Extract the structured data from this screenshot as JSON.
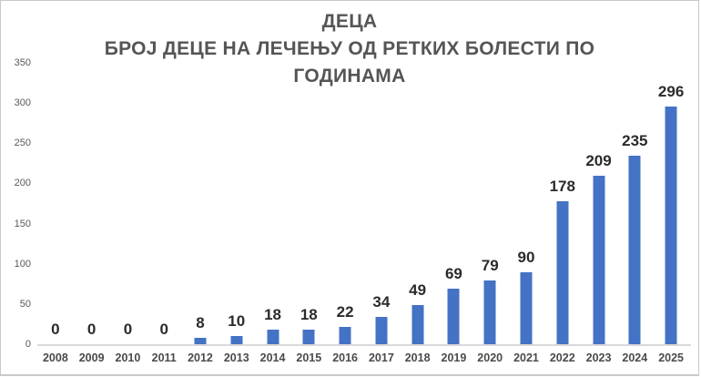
{
  "chart_data": {
    "type": "bar",
    "title_lines": [
      "ДЕЦА",
      "БРОЈ ДЕЦЕ НА ЛЕЧЕЊУ ОД РЕТКИХ БОЛЕСТИ ПО",
      "ГОДИНАМА"
    ],
    "title": "ДЕЦА БРОЈ ДЕЦЕ НА ЛЕЧЕЊУ ОД РЕТКИХ БОЛЕСТИ ПО ГОДИНАМА",
    "categories": [
      "2008",
      "2009",
      "2010",
      "2011",
      "2012",
      "2013",
      "2014",
      "2015",
      "2016",
      "2017",
      "2018",
      "2019",
      "2020",
      "2021",
      "2022",
      "2023",
      "2024",
      "2025"
    ],
    "values": [
      0,
      0,
      0,
      0,
      8,
      10,
      18,
      18,
      22,
      34,
      49,
      69,
      79,
      90,
      178,
      209,
      235,
      296
    ],
    "xlabel": "",
    "ylabel": "",
    "ylim": [
      0,
      350
    ],
    "yticks": [
      0,
      50,
      100,
      150,
      200,
      250,
      300,
      350
    ],
    "grid": false,
    "legend": false,
    "data_labels": true,
    "colors": {
      "bar": "#4472c4",
      "axis_line": "#d9d9d9",
      "data_label": "#2b2b2b",
      "tick_label": "#595959",
      "title": "#555555",
      "background": "#ffffff"
    }
  }
}
